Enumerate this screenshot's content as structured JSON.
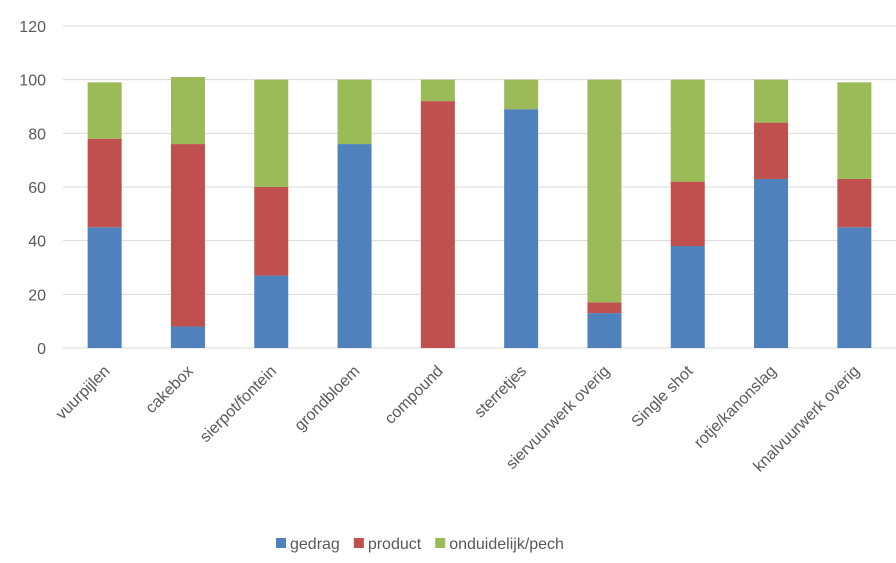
{
  "chart_data": {
    "type": "bar",
    "stacked": true,
    "categories": [
      "vuurpijlen",
      "cakebox",
      "sierpot/fontein",
      "grondbloem",
      "compound",
      "sterretjes",
      "siervuurwerk  overig",
      "Single shot",
      "rotje/kanonslag",
      "knalvuurwerk overig"
    ],
    "series": [
      {
        "name": "gedrag",
        "color": "#4F81BD",
        "values": [
          45,
          8,
          27,
          76,
          0,
          89,
          13,
          38,
          63,
          45
        ]
      },
      {
        "name": "product",
        "color": "#C0504D",
        "values": [
          33,
          68,
          33,
          0,
          92,
          0,
          4,
          24,
          21,
          18
        ]
      },
      {
        "name": "onduidelijk/pech",
        "color": "#9BBB59",
        "values": [
          21,
          25,
          40,
          24,
          8,
          11,
          83,
          38,
          16,
          36
        ]
      }
    ],
    "ylim": [
      0,
      120
    ],
    "yticks": [
      "0",
      "20",
      "40",
      "60",
      "80",
      "100",
      "120"
    ],
    "grid": true,
    "legend": "bottom",
    "title": "",
    "xlabel": "",
    "ylabel": ""
  }
}
